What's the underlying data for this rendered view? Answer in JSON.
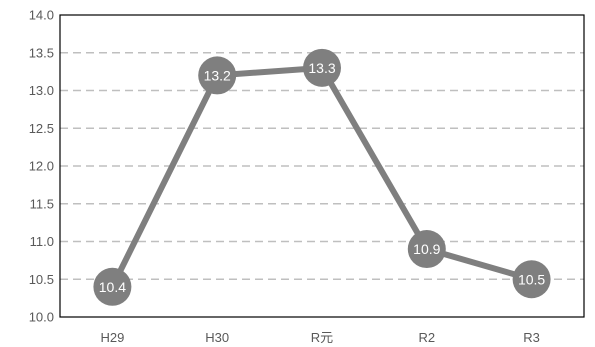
{
  "chart_data": {
    "type": "line",
    "title": "",
    "xlabel": "",
    "ylabel": "",
    "categories": [
      "H29",
      "H30",
      "R元",
      "R2",
      "R3"
    ],
    "series": [
      {
        "values": [
          10.4,
          13.2,
          13.3,
          10.9,
          10.5
        ]
      }
    ],
    "data_labels": [
      "10.4",
      "13.2",
      "13.3",
      "10.9",
      "10.5"
    ],
    "ylim": [
      10.0,
      14.0
    ],
    "yticks": [
      10.0,
      10.5,
      11.0,
      11.5,
      12.0,
      12.5,
      13.0,
      13.5,
      14.0
    ],
    "ytick_labels": [
      "10.0",
      "10.5",
      "11.0",
      "11.5",
      "12.0",
      "12.5",
      "13.0",
      "13.5",
      "14.0"
    ],
    "grid": "horizontal dashed",
    "legend": "none",
    "colors": {
      "series": "#7f7f7f",
      "grid": "#bfbfbf",
      "axis": "#000000",
      "tick_text": "#595959",
      "label_text": "#ffffff"
    }
  }
}
